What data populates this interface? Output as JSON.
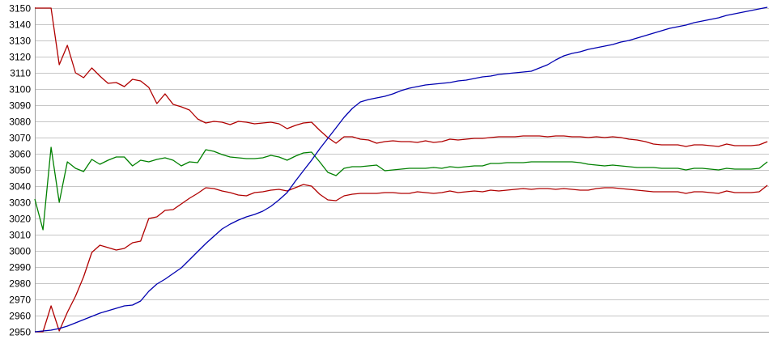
{
  "chart_data": {
    "type": "line",
    "title": "",
    "xlabel": "",
    "ylabel": "",
    "ylim": [
      2950,
      3150
    ],
    "y_tick_step": 10,
    "y_ticks": [
      3150,
      3140,
      3130,
      3120,
      3110,
      3100,
      3090,
      3080,
      3070,
      3060,
      3050,
      3040,
      3030,
      3020,
      3010,
      3000,
      2990,
      2980,
      2970,
      2960,
      2950
    ],
    "x_ticks": [],
    "x_points": 91,
    "grid": true,
    "legend": "none",
    "background_color": "#ffffff",
    "grid_color": "#c6c6c6",
    "axis_color": "#9a9a9a",
    "label_color": "#000000",
    "series": [
      {
        "name": "upper-red-descending",
        "color": "#b00000",
        "values": [
          3150,
          3150,
          3150,
          3115,
          3127,
          3110,
          3107,
          3113,
          3108,
          3103.5,
          3104,
          3101.5,
          3106,
          3105,
          3101,
          3091,
          3097,
          3090.5,
          3089,
          3087,
          3081.5,
          3079,
          3080,
          3079.5,
          3078,
          3080,
          3079.5,
          3078.5,
          3079,
          3079.5,
          3078.5,
          3075.5,
          3077.5,
          3079,
          3079.5,
          3074.5,
          3070,
          3066.5,
          3070.5,
          3070.5,
          3069,
          3068.5,
          3066.5,
          3067.5,
          3068,
          3067.5,
          3067.5,
          3067,
          3068,
          3067,
          3067.5,
          3069,
          3068.5,
          3069,
          3069.5,
          3069.5,
          3070,
          3070.5,
          3070.5,
          3070.5,
          3071,
          3071,
          3071,
          3070.5,
          3071,
          3071,
          3070.5,
          3070.5,
          3070,
          3070.5,
          3070,
          3070.5,
          3070,
          3069,
          3068.5,
          3067.5,
          3066,
          3065.5,
          3065.5,
          3065.5,
          3064.5,
          3065.5,
          3065.5,
          3065,
          3064.5,
          3066,
          3065,
          3065,
          3065,
          3065.5,
          3067.5
        ]
      },
      {
        "name": "lower-red-ascending",
        "color": "#b00000",
        "values": [
          2950,
          2950,
          2966,
          2950.5,
          2962,
          2972,
          2984,
          2999,
          3003.5,
          3002,
          3000.5,
          3001.5,
          3005,
          3006,
          3020,
          3021,
          3025,
          3025.5,
          3029,
          3032.5,
          3035.5,
          3039,
          3038.5,
          3037,
          3036,
          3034.5,
          3034,
          3036,
          3036.5,
          3037.5,
          3038,
          3037,
          3039,
          3041,
          3040,
          3035,
          3031.5,
          3031,
          3034,
          3035,
          3035.5,
          3035.5,
          3035.5,
          3036,
          3036,
          3035.5,
          3035.5,
          3036.5,
          3036,
          3035.5,
          3036,
          3037,
          3036,
          3036.5,
          3037,
          3036.5,
          3037.5,
          3037,
          3037.5,
          3038,
          3038.5,
          3038,
          3038.5,
          3038.5,
          3038,
          3038.5,
          3038,
          3037.5,
          3037.5,
          3038.5,
          3039,
          3039,
          3038.5,
          3038,
          3037.5,
          3037,
          3036.5,
          3036.5,
          3036.5,
          3036.5,
          3035.5,
          3036.5,
          3036.5,
          3036,
          3035.5,
          3037,
          3036,
          3036,
          3036,
          3036.5,
          3040.5
        ]
      },
      {
        "name": "green-middle",
        "color": "#008000",
        "values": [
          3032,
          3013,
          3064,
          3030,
          3055,
          3051,
          3049,
          3056.5,
          3053.5,
          3056,
          3058,
          3058,
          3052.5,
          3056,
          3055,
          3056.5,
          3057.5,
          3056,
          3052.5,
          3055,
          3054.5,
          3062.5,
          3061.5,
          3059.5,
          3058,
          3057.5,
          3057,
          3057,
          3057.5,
          3059,
          3058,
          3056,
          3058.5,
          3060.5,
          3061,
          3055,
          3048.5,
          3046.5,
          3051,
          3052,
          3052,
          3052.5,
          3053,
          3049.5,
          3050,
          3050.5,
          3051,
          3051,
          3051,
          3051.5,
          3051,
          3052,
          3051.5,
          3052,
          3052.5,
          3052.5,
          3054,
          3054,
          3054.5,
          3054.5,
          3054.5,
          3055,
          3055,
          3055,
          3055,
          3055,
          3055,
          3054.5,
          3053.5,
          3053,
          3052.5,
          3053,
          3052.5,
          3052,
          3051.5,
          3051.5,
          3051.5,
          3051,
          3051,
          3051,
          3050,
          3051,
          3051,
          3050.5,
          3050,
          3051,
          3050.5,
          3050.5,
          3050.5,
          3051,
          3055
        ]
      },
      {
        "name": "blue-cumulative",
        "color": "#0000b0",
        "values": [
          2950,
          2950.5,
          2951,
          2952,
          2953.5,
          2955.5,
          2957.5,
          2959.5,
          2961.5,
          2963,
          2964.5,
          2966,
          2966.5,
          2969,
          2975,
          2979.5,
          2982.5,
          2986,
          2989.5,
          2994.5,
          2999.5,
          3004.5,
          3009,
          3013.5,
          3016.5,
          3019,
          3021,
          3022.5,
          3024.5,
          3027.5,
          3031.5,
          3036,
          3043,
          3049.5,
          3056,
          3063,
          3069.5,
          3076,
          3082.5,
          3088,
          3092,
          3093.5,
          3094.5,
          3095.5,
          3097,
          3099,
          3100.5,
          3101.5,
          3102.5,
          3103,
          3103.5,
          3104,
          3105,
          3105.5,
          3106.5,
          3107.5,
          3108,
          3109,
          3109.5,
          3110,
          3110.5,
          3111,
          3113,
          3115,
          3118,
          3120.5,
          3122,
          3123,
          3124.5,
          3125.5,
          3126.5,
          3127.5,
          3129,
          3130,
          3131.5,
          3133,
          3134.5,
          3136,
          3137.5,
          3138.5,
          3139.5,
          3141,
          3142,
          3143,
          3144,
          3145.5,
          3146.5,
          3147.5,
          3148.5,
          3149.5,
          3150.5
        ]
      }
    ]
  }
}
